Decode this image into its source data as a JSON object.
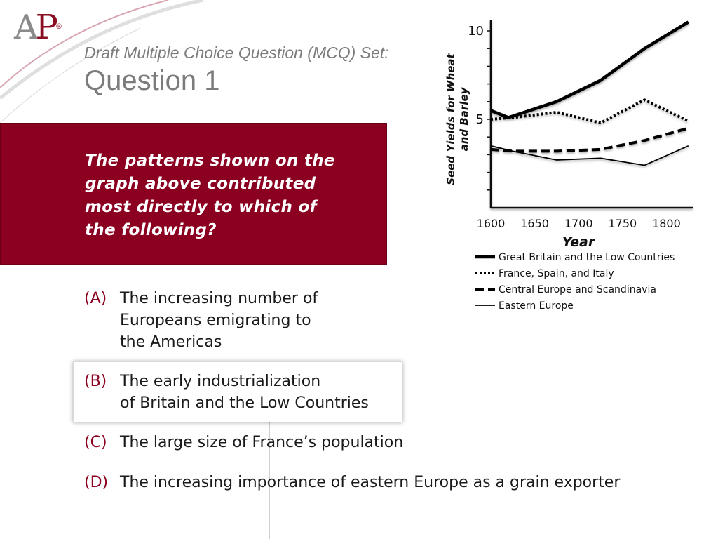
{
  "logo": {
    "letters_a": "A",
    "letters_p": "P",
    "mark": "®"
  },
  "header": {
    "subtitle": "Draft Multiple Choice Question (MCQ) Set:",
    "title": "Question 1"
  },
  "question": {
    "text": "The patterns shown on the graph above contributed most directly to which of the following?"
  },
  "options": [
    {
      "letter": "(A)",
      "text": "The increasing number of\nEuropeans emigrating to\nthe Americas"
    },
    {
      "letter": "(B)",
      "text": "The early industrialization\nof Britain and the Low Countries"
    },
    {
      "letter": "(C)",
      "text": "The large size of France’s population"
    },
    {
      "letter": "(D)",
      "text": "The increasing importance of eastern Europe as a grain exporter"
    }
  ],
  "colors": {
    "brand_red": "#8b0020",
    "gray_text": "#7c7c7c"
  },
  "chart_data": {
    "type": "line",
    "title": "",
    "xlabel": "Year",
    "ylabel": "Seed Yields for Wheat and Barley",
    "x_ticks": [
      "1600",
      "1650",
      "1700",
      "1750",
      "1800"
    ],
    "y_ticks": [
      "5",
      "10"
    ],
    "xlim": [
      1600,
      1830
    ],
    "ylim": [
      0,
      10
    ],
    "grid": false,
    "legend_position": "bottom",
    "series": [
      {
        "name": "Great Britain and the Low Countries",
        "style": "thick-solid",
        "x": [
          1600,
          1620,
          1675,
          1725,
          1775,
          1825
        ],
        "y": [
          5.5,
          5.1,
          6.0,
          7.2,
          9.0,
          10.5
        ]
      },
      {
        "name": "France, Spain, and Italy",
        "style": "dotted",
        "x": [
          1600,
          1625,
          1675,
          1725,
          1775,
          1825
        ],
        "y": [
          5.0,
          5.1,
          5.4,
          4.8,
          6.1,
          4.9
        ]
      },
      {
        "name": "Central Europe and Scandinavia",
        "style": "dashed",
        "x": [
          1600,
          1625,
          1675,
          1725,
          1775,
          1825
        ],
        "y": [
          3.3,
          3.2,
          3.2,
          3.3,
          3.8,
          4.5
        ]
      },
      {
        "name": "Eastern Europe",
        "style": "thin-solid",
        "x": [
          1600,
          1625,
          1675,
          1725,
          1775,
          1825
        ],
        "y": [
          3.5,
          3.2,
          2.7,
          2.8,
          2.4,
          3.5
        ]
      }
    ]
  }
}
